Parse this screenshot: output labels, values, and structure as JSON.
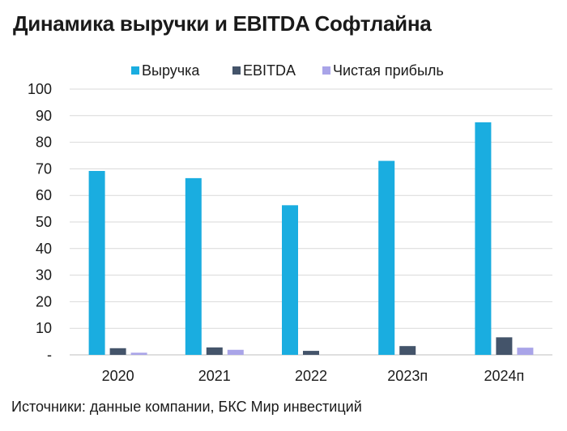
{
  "header": {
    "title": "Динамика выручки и EBITDA Софтлайна"
  },
  "footer": {
    "source": "Источники: данные компании, БКС Мир инвестиций"
  },
  "chart_data": {
    "type": "bar",
    "title": "Динамика выручки и EBITDA Софтлайна",
    "xlabel": "",
    "ylabel": "",
    "ylim": [
      0,
      100
    ],
    "yticks": [
      0,
      10,
      20,
      30,
      40,
      50,
      60,
      70,
      80,
      90,
      100
    ],
    "ytick_labels": [
      "-",
      "10",
      "20",
      "30",
      "40",
      "50",
      "60",
      "70",
      "80",
      "90",
      "100"
    ],
    "grid": true,
    "legend_position": "top-center",
    "categories": [
      "2020",
      "2021",
      "2022",
      "2023п",
      "2024п"
    ],
    "series": [
      {
        "name": "Выручка",
        "color": "#1AADE0",
        "values": [
          69.2,
          66.5,
          56.3,
          73.0,
          87.5
        ]
      },
      {
        "name": "EBITDA",
        "color": "#44546A",
        "values": [
          2.5,
          2.8,
          1.5,
          3.3,
          6.6
        ]
      },
      {
        "name": "Чистая прибыль",
        "color": "#A9A4E8",
        "values": [
          0.8,
          1.9,
          0,
          0,
          2.7
        ]
      }
    ]
  }
}
